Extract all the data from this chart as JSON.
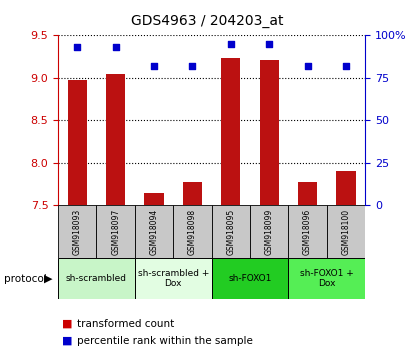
{
  "title": "GDS4963 / 204203_at",
  "samples": [
    "GSM918093",
    "GSM918097",
    "GSM918094",
    "GSM918098",
    "GSM918095",
    "GSM918099",
    "GSM918096",
    "GSM918100"
  ],
  "transformed_counts": [
    8.97,
    9.05,
    7.65,
    7.77,
    9.23,
    9.21,
    7.77,
    7.9
  ],
  "percentile_ranks": [
    93,
    93,
    82,
    82,
    95,
    95,
    82,
    82
  ],
  "ylim_left": [
    7.5,
    9.5
  ],
  "ylim_right": [
    0,
    100
  ],
  "yticks_left": [
    7.5,
    8.0,
    8.5,
    9.0,
    9.5
  ],
  "yticks_right": [
    0,
    25,
    50,
    75,
    100
  ],
  "ytick_labels_right": [
    "0",
    "25",
    "50",
    "75",
    "100%"
  ],
  "groups": [
    {
      "label": "sh-scrambled",
      "start": 0,
      "end": 2,
      "color": "#c8f5c8"
    },
    {
      "label": "sh-scrambled +\nDox",
      "start": 2,
      "end": 4,
      "color": "#e2fde2"
    },
    {
      "label": "sh-FOXO1",
      "start": 4,
      "end": 6,
      "color": "#22cc22"
    },
    {
      "label": "sh-FOXO1 +\nDox",
      "start": 6,
      "end": 8,
      "color": "#55ee55"
    }
  ],
  "bar_color": "#bb1111",
  "dot_color": "#0000cc",
  "bar_width": 0.5,
  "left_tick_color": "#cc0000",
  "right_tick_color": "#0000cc",
  "sample_bg_color": "#c8c8c8",
  "legend_bar_color": "#cc0000",
  "legend_dot_color": "#0000cc"
}
